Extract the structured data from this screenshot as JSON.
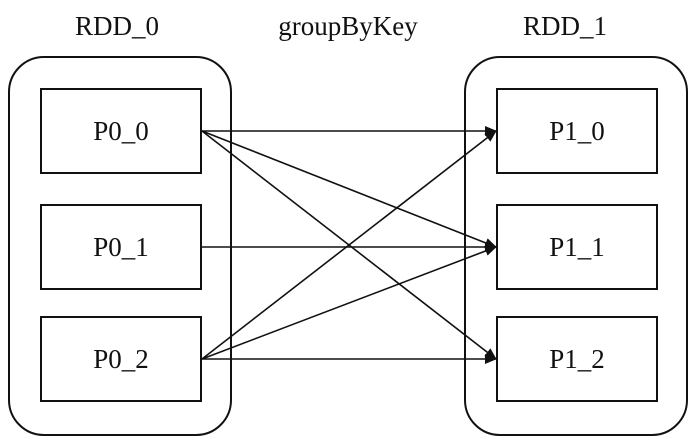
{
  "rdd_left": {
    "title": "RDD_0",
    "partitions": [
      "P0_0",
      "P0_1",
      "P0_2"
    ]
  },
  "rdd_right": {
    "title": "RDD_1",
    "partitions": [
      "P1_0",
      "P1_1",
      "P1_2"
    ]
  },
  "operation": "groupByKey",
  "edges": [
    {
      "from": 0,
      "to": 0
    },
    {
      "from": 0,
      "to": 1
    },
    {
      "from": 0,
      "to": 2
    },
    {
      "from": 1,
      "to": 1
    },
    {
      "from": 2,
      "to": 0
    },
    {
      "from": 2,
      "to": 1
    },
    {
      "from": 2,
      "to": 2
    }
  ],
  "colors": {
    "stroke": "#111111",
    "background": "#ffffff"
  }
}
